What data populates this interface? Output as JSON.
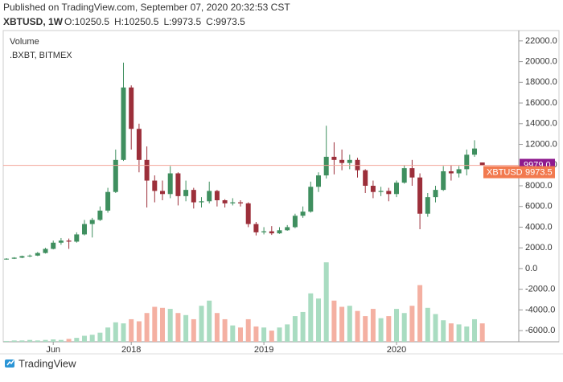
{
  "header": {
    "published": "Published on TradingView.com, September 07, 2020 20:32:53 CST",
    "symbol": "XBTUSD, 1W",
    "ohlc": [
      "O:10250.5",
      "H:10250.5",
      "L:9973.5",
      "C:9973.5"
    ]
  },
  "footer": {
    "brand": "TradingView"
  },
  "chart_data": {
    "type": "candlestick",
    "legend": [
      "Volume",
      ".BXBT, BITMEX"
    ],
    "categories": [
      null,
      null,
      null,
      null,
      null,
      null,
      "Jun",
      null,
      null,
      null,
      null,
      null,
      null,
      null,
      null,
      null,
      "2018",
      null,
      null,
      null,
      null,
      null,
      null,
      null,
      null,
      null,
      null,
      null,
      null,
      null,
      null,
      null,
      null,
      "2019",
      null,
      null,
      null,
      null,
      null,
      null,
      null,
      null,
      null,
      null,
      null,
      null,
      null,
      null,
      null,
      null,
      "2020",
      null,
      null,
      null,
      null,
      null,
      null,
      null,
      null,
      null,
      null,
      null
    ],
    "open": [
      900,
      950,
      1050,
      1200,
      1250,
      1500,
      1900,
      2500,
      2700,
      2600,
      3300,
      4300,
      4700,
      5600,
      7400,
      10500,
      17500,
      13500,
      10500,
      8500,
      7500,
      7200,
      9200,
      7000,
      7600,
      6400,
      6500,
      7500,
      6600,
      6300,
      6400,
      6300,
      4300,
      3500,
      3600,
      3400,
      3700,
      4000,
      5100,
      5500,
      7900,
      9000,
      10800,
      10500,
      10200,
      10500,
      9500,
      8000,
      7400,
      7500,
      7200,
      8300,
      9700,
      8800,
      5300,
      6900,
      7600,
      9400,
      9200,
      9600,
      11000,
      10250.5
    ],
    "high": [
      1000,
      1100,
      1250,
      1350,
      1600,
      2000,
      2700,
      2950,
      2900,
      3500,
      4700,
      4900,
      6000,
      7800,
      11500,
      19900,
      17700,
      14000,
      11800,
      9000,
      8500,
      9900,
      9300,
      8500,
      7800,
      6900,
      8400,
      7600,
      6700,
      6800,
      6600,
      6400,
      4500,
      4000,
      4100,
      4000,
      4200,
      5300,
      6000,
      8400,
      9300,
      13800,
      12200,
      11500,
      11000,
      10700,
      9600,
      8500,
      7900,
      7800,
      8500,
      10000,
      10500,
      9200,
      7300,
      8000,
      9900,
      10000,
      9900,
      11500,
      12400,
      10250.5
    ],
    "low": [
      850,
      920,
      1000,
      1100,
      1200,
      1450,
      1850,
      2300,
      1900,
      2500,
      3200,
      3000,
      4600,
      5400,
      7300,
      10400,
      11500,
      9300,
      5900,
      6400,
      6600,
      6800,
      6100,
      6500,
      5800,
      5900,
      6300,
      6000,
      5900,
      6100,
      6000,
      4000,
      3200,
      3300,
      3250,
      3350,
      3650,
      3900,
      4900,
      5400,
      7400,
      8700,
      9100,
      9500,
      9600,
      8800,
      7300,
      6800,
      7000,
      6500,
      6900,
      8200,
      8000,
      3800,
      5000,
      6400,
      7500,
      8500,
      8800,
      9000,
      10800,
      9973.5
    ],
    "close": [
      950,
      1050,
      1200,
      1250,
      1500,
      1900,
      2500,
      2700,
      2600,
      3300,
      4300,
      4700,
      5600,
      7400,
      10500,
      17500,
      13500,
      10500,
      8500,
      7500,
      7200,
      9200,
      7000,
      7600,
      6400,
      6500,
      7500,
      6600,
      6300,
      6400,
      6300,
      4300,
      3500,
      3600,
      3400,
      3700,
      4000,
      5100,
      5500,
      7900,
      9000,
      10800,
      10500,
      10200,
      10500,
      9500,
      8000,
      7400,
      7500,
      7200,
      8300,
      9700,
      8800,
      5300,
      6900,
      7600,
      9400,
      9200,
      9600,
      11000,
      11600,
      9973.5
    ],
    "volume": [
      -7000,
      -6950,
      -6950,
      -6900,
      -6950,
      -6900,
      -6850,
      -6900,
      -6800,
      -6700,
      -6500,
      -6400,
      -6200,
      -5700,
      -5200,
      -5300,
      -4900,
      -5100,
      -4300,
      -3700,
      -3800,
      -3900,
      -4300,
      -4500,
      -4900,
      -3600,
      -3100,
      -4300,
      -4900,
      -5500,
      -5700,
      -4900,
      -5600,
      -5700,
      -6000,
      -5700,
      -5400,
      -4600,
      -4200,
      -2400,
      -2900,
      600,
      -3100,
      -3700,
      -3600,
      -4100,
      -4600,
      -3900,
      -4800,
      -4600,
      -3900,
      -4300,
      -3600,
      -1600,
      -3800,
      -4400,
      -5000,
      -5300,
      -5400,
      -5600,
      -4900,
      -5300
    ],
    "up_color": "#3f8f5f",
    "down_color": "#9c2f3a",
    "vol_up_color": "#a9dcc1",
    "vol_down_color": "#f4b0a2",
    "ylim": [
      -7080,
      23000
    ],
    "yticks": [
      {
        "value": 22000,
        "label": "22000.0"
      },
      {
        "value": 20000,
        "label": "20000.0"
      },
      {
        "value": 18000,
        "label": "18000.0"
      },
      {
        "value": 16000,
        "label": "16000.0"
      },
      {
        "value": 14000,
        "label": "14000.0"
      },
      {
        "value": 12000,
        "label": "12000.0"
      },
      {
        "value": 10000,
        "label": "10000.0"
      },
      {
        "value": 8000,
        "label": "8000.0"
      },
      {
        "value": 6000,
        "label": "6000.0"
      },
      {
        "value": 4000,
        "label": "4000.0"
      },
      {
        "value": 2000,
        "label": "2000.0"
      },
      {
        "value": 0,
        "label": "0.0"
      },
      {
        "value": -2000,
        "label": "-2000.0"
      },
      {
        "value": -4000,
        "label": "-4000.0"
      },
      {
        "value": -6000,
        "label": "-6000.0"
      }
    ],
    "index_price": {
      "value": 9979.0,
      "label": "9979.0",
      "color": "#8e1a8e"
    },
    "last_price": {
      "value": 9973.5,
      "symbol": "XBTUSD",
      "color": "#f27a4f"
    }
  }
}
